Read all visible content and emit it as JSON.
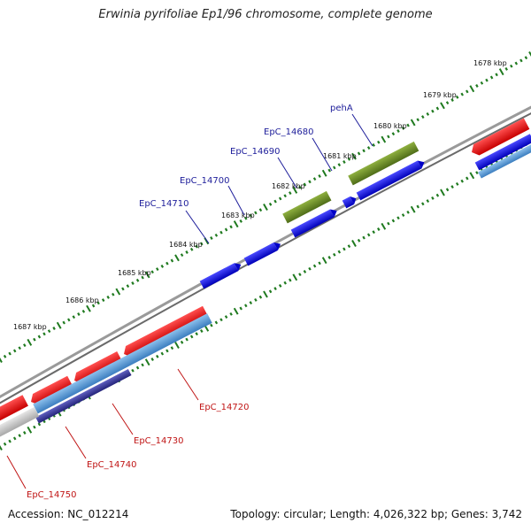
{
  "header": {
    "title": "Erwinia pyrifoliae Ep1/96 chromosome, complete genome"
  },
  "footer": {
    "accession": "Accession: NC_012214",
    "summary": "Topology: circular; Length: 4,026,322 bp; Genes: 3,742"
  },
  "colors": {
    "backbone": "#8a8a8a",
    "forward_cds": "#1010e0",
    "forward_gene_green": "#6f8f2a",
    "reverse_cds": "#e01515",
    "reverse_cds_light": "#5aa0dc",
    "reverse_cds_dark": "#3a3aa0",
    "reverse_cds_grey": "#c8c8c8",
    "ticks": "#1f7a1f",
    "label_fwd": "#1d1d9a",
    "label_rev": "#c01515"
  },
  "ticks": {
    "kbp_labels": [
      "1678 kbp",
      "1679 kbp",
      "1680 kbp",
      "1681 kbp",
      "1682 kbp",
      "1683 kbp",
      "1684 kbp",
      "1685 kbp",
      "1686 kbp",
      "1687 kbp"
    ]
  },
  "gene_labels": {
    "forward": [
      "pehA",
      "EpC_14680",
      "EpC_14690",
      "EpC_14700",
      "EpC_14710"
    ],
    "reverse": [
      "EpC_14720",
      "EpC_14730",
      "EpC_14740",
      "EpC_14750"
    ]
  }
}
